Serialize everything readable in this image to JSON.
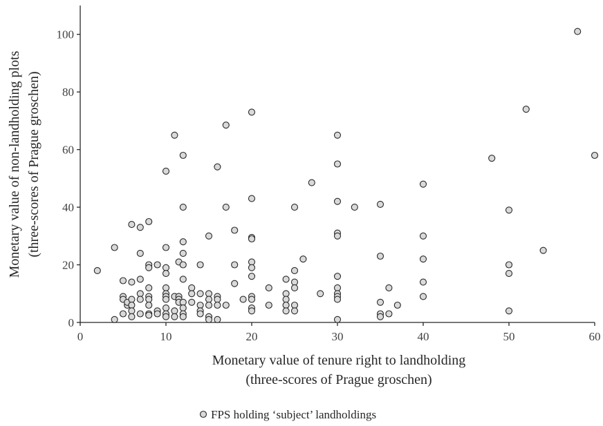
{
  "chart_data": {
    "type": "scatter",
    "xlabel_lines": [
      "Monetary value of tenure right to landholding",
      "(three-scores of Prague groschen)"
    ],
    "ylabel_lines": [
      "Monetary value of non-landholding plots",
      "(three-scores of Prague groschen)"
    ],
    "xlim": [
      0,
      60
    ],
    "ylim": [
      0,
      110
    ],
    "xticks": [
      "0",
      "10",
      "20",
      "30",
      "40",
      "50",
      "60"
    ],
    "yticks": [
      "0",
      "20",
      "40",
      "60",
      "80",
      "100"
    ],
    "grid": false,
    "legend_position": "bottom-center",
    "series": [
      {
        "name": "FPS holding ‘subject’ landholdings",
        "marker": "circle",
        "fill_color": "#d9d9d9",
        "stroke_color": "#262626",
        "points": [
          [
            2,
            18
          ],
          [
            4,
            1
          ],
          [
            4,
            26
          ],
          [
            5,
            14.5
          ],
          [
            5,
            9
          ],
          [
            5,
            8
          ],
          [
            5,
            3
          ],
          [
            5.5,
            6
          ],
          [
            5.5,
            7
          ],
          [
            6,
            34
          ],
          [
            6,
            14
          ],
          [
            6,
            8
          ],
          [
            6,
            6
          ],
          [
            6,
            4
          ],
          [
            6,
            2
          ],
          [
            7,
            33
          ],
          [
            7,
            24
          ],
          [
            7,
            15
          ],
          [
            7,
            10
          ],
          [
            7,
            8
          ],
          [
            7,
            3
          ],
          [
            8,
            35
          ],
          [
            8,
            20
          ],
          [
            8,
            19
          ],
          [
            8,
            12
          ],
          [
            8,
            9
          ],
          [
            8,
            8
          ],
          [
            8,
            6
          ],
          [
            8,
            3
          ],
          [
            8,
            2.5
          ],
          [
            9,
            20
          ],
          [
            9,
            4
          ],
          [
            9,
            3
          ],
          [
            10,
            52.5
          ],
          [
            10,
            26
          ],
          [
            10,
            19
          ],
          [
            10,
            17
          ],
          [
            10,
            12
          ],
          [
            10,
            10
          ],
          [
            10,
            9
          ],
          [
            10,
            8
          ],
          [
            10,
            5
          ],
          [
            10,
            3
          ],
          [
            10,
            2
          ],
          [
            11,
            65
          ],
          [
            11,
            9
          ],
          [
            11,
            4
          ],
          [
            11,
            2
          ],
          [
            11.5,
            21
          ],
          [
            11.5,
            9
          ],
          [
            11.5,
            8
          ],
          [
            11.5,
            7
          ],
          [
            12,
            58
          ],
          [
            12,
            40
          ],
          [
            12,
            28
          ],
          [
            12,
            24
          ],
          [
            12,
            20
          ],
          [
            12,
            15
          ],
          [
            12,
            7
          ],
          [
            12,
            5
          ],
          [
            12,
            3
          ],
          [
            12,
            2
          ],
          [
            13,
            12
          ],
          [
            13,
            10
          ],
          [
            13,
            7
          ],
          [
            14,
            20
          ],
          [
            14,
            10
          ],
          [
            14,
            6
          ],
          [
            14,
            4
          ],
          [
            14,
            3
          ],
          [
            15,
            30
          ],
          [
            15,
            10
          ],
          [
            15,
            8
          ],
          [
            15,
            6
          ],
          [
            15,
            2
          ],
          [
            15,
            1
          ],
          [
            16,
            54
          ],
          [
            16,
            9
          ],
          [
            16,
            8
          ],
          [
            16,
            6
          ],
          [
            16,
            1
          ],
          [
            17,
            68.5
          ],
          [
            17,
            40
          ],
          [
            17,
            6
          ],
          [
            18,
            32
          ],
          [
            18,
            20
          ],
          [
            18,
            13.5
          ],
          [
            19,
            8
          ],
          [
            20,
            73
          ],
          [
            20,
            43
          ],
          [
            20,
            29.5
          ],
          [
            20,
            29
          ],
          [
            20,
            21
          ],
          [
            20,
            19
          ],
          [
            20,
            16
          ],
          [
            20,
            9
          ],
          [
            20,
            8
          ],
          [
            20,
            5
          ],
          [
            20,
            4
          ],
          [
            22,
            12
          ],
          [
            22,
            6
          ],
          [
            24,
            15
          ],
          [
            24,
            10
          ],
          [
            24,
            8
          ],
          [
            24,
            6
          ],
          [
            24,
            4
          ],
          [
            25,
            40
          ],
          [
            25,
            18
          ],
          [
            25,
            14
          ],
          [
            25,
            12
          ],
          [
            25,
            6
          ],
          [
            25,
            4
          ],
          [
            26,
            22
          ],
          [
            27,
            48.5
          ],
          [
            28,
            10
          ],
          [
            30,
            65
          ],
          [
            30,
            55
          ],
          [
            30,
            42
          ],
          [
            30,
            31
          ],
          [
            30,
            30
          ],
          [
            30,
            16
          ],
          [
            30,
            12
          ],
          [
            30,
            10
          ],
          [
            30,
            9
          ],
          [
            30,
            8
          ],
          [
            30,
            1
          ],
          [
            32,
            40
          ],
          [
            35,
            41
          ],
          [
            35,
            23
          ],
          [
            35,
            7
          ],
          [
            35,
            3
          ],
          [
            35,
            2
          ],
          [
            36,
            12
          ],
          [
            36,
            3
          ],
          [
            37,
            6
          ],
          [
            40,
            48
          ],
          [
            40,
            30
          ],
          [
            40,
            22
          ],
          [
            40,
            14
          ],
          [
            40,
            9
          ],
          [
            48,
            57
          ],
          [
            50,
            39
          ],
          [
            50,
            20
          ],
          [
            50,
            17
          ],
          [
            50,
            4
          ],
          [
            52,
            74
          ],
          [
            54,
            25
          ],
          [
            58,
            101
          ],
          [
            60,
            58
          ]
        ]
      }
    ]
  }
}
